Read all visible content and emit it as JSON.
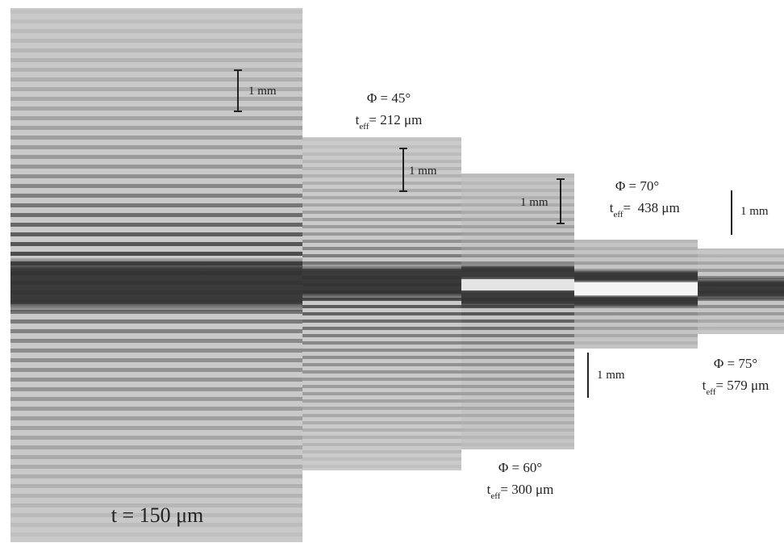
{
  "panels": [
    {
      "label": "t = 150 μm",
      "scale_bar": "1 mm"
    },
    {
      "phi": "Φ = 45°",
      "t_sym": "t",
      "t_sub": "eff",
      "t_val": "= 212 μm",
      "scale_bar": "1 mm"
    },
    {
      "phi": "Φ = 60°",
      "t_sym": "t",
      "t_sub": "eff",
      "t_val": "= 300 μm",
      "scale_bar": "1 mm"
    },
    {
      "phi": "Φ = 70°",
      "t_sym": "t",
      "t_sub": "eff",
      "t_val": "=  438 μm",
      "scale_bar": "1 mm"
    },
    {
      "phi": "Φ = 75°",
      "t_sym": "t",
      "t_sub": "eff",
      "t_val": "= 579 μm",
      "scale_bar": "1 mm"
    }
  ]
}
